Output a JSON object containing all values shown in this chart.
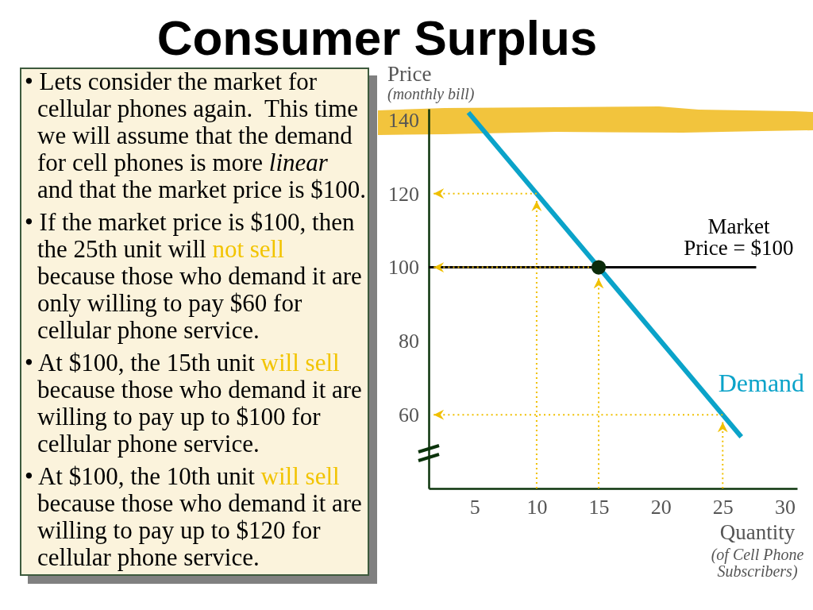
{
  "chart_data": [
    {
      "type": "other",
      "annotations": [
        "• Lets consider the market for cellular phones again.  This time we will assume that the demand",
        "for cell phones is more",
        "linear",
        "and that the market price is $100.",
        "• If the market price is $100, then",
        "the 25th unit will",
        "not sell",
        "because those who demand it are only willing to pay $60 for cellular phone service.",
        "• At $100, the 15th unit",
        "will sell",
        "because those who demand it are willing to pay up to $100 for cellular phone service.",
        "• At $100, the 10th unit",
        "will sell",
        "because those who demand it are willing to pay up to $120 for cellular phone service."
      ]
    },
    {
      "type": "line",
      "title": "Consumer Surplus",
      "xlabel": "Quantity\n(of Cell Phone\nSubscribers)",
      "ylabel": "Price\n(monthly bill)",
      "xlim": [
        1.3,
        31
      ],
      "ylim": [
        40,
        143
      ],
      "xticks": [
        5,
        10,
        15,
        20,
        25,
        30
      ],
      "yticks": [
        60,
        80,
        100,
        120,
        140
      ],
      "series": [
        {
          "name": "Market Price = $100",
          "color": "#000000",
          "x": [
            1.3,
            27.7
          ],
          "values": [
            100,
            100
          ],
          "line_style": "solid"
        },
        {
          "name": "Demand",
          "color": "#0ba3c9",
          "x": [
            4.5,
            26.5
          ],
          "values": [
            142,
            54
          ],
          "line_style": "solid"
        },
        {
          "color": "#f0c000",
          "x": [
            10,
            10
          ],
          "values": [
            40,
            118
          ],
          "line_style": "dotted"
        },
        {
          "color": "#f0c000",
          "x": [
            10,
            1.7
          ],
          "values": [
            120,
            120
          ],
          "line_style": "dotted"
        },
        {
          "color": "#f0c000",
          "x": [
            15,
            15
          ],
          "values": [
            40,
            97
          ],
          "line_style": "dotted"
        },
        {
          "color": "#f0c000",
          "x": [
            15,
            1.7
          ],
          "values": [
            100,
            100
          ],
          "line_style": "dotted"
        },
        {
          "color": "#f0c000",
          "x": [
            25,
            25
          ],
          "values": [
            40,
            58
          ],
          "line_style": "dotted"
        },
        {
          "color": "#f0c000",
          "x": [
            25,
            1.7
          ],
          "values": [
            60,
            60
          ],
          "line_style": "dotted"
        },
        {
          "type": "scatter",
          "color": "#0b2b0b",
          "x": [
            15
          ],
          "values": [
            100
          ],
          "marker": "circle"
        }
      ]
    }
  ]
}
